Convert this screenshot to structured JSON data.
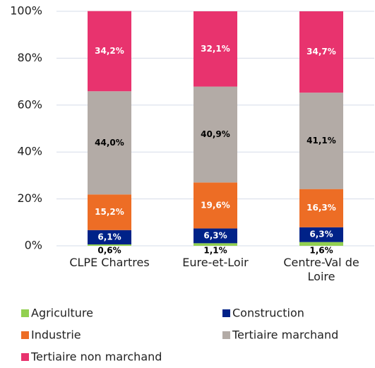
{
  "chart_data": {
    "type": "bar",
    "stacked": true,
    "categories": [
      "CLPE Chartres",
      "Eure-et-Loir",
      "Centre-Val de Loire"
    ],
    "series": [
      {
        "name": "Agriculture",
        "color": "#92d050",
        "values": [
          0.6,
          1.1,
          1.6
        ],
        "value_labels": [
          "0,6%",
          "1,1%",
          "1,6%"
        ]
      },
      {
        "name": "Construction",
        "color": "#002288",
        "values": [
          6.1,
          6.3,
          6.3
        ],
        "value_labels": [
          "6,1%",
          "6,3%",
          "6,3%"
        ]
      },
      {
        "name": "Industrie",
        "color": "#ed6d25",
        "values": [
          15.2,
          19.6,
          16.3
        ],
        "value_labels": [
          "15,2%",
          "19,6%",
          "16,3%"
        ]
      },
      {
        "name": "Tertiaire marchand",
        "color": "#b3aba6",
        "values": [
          44.0,
          40.9,
          41.1
        ],
        "value_labels": [
          "44,0%",
          "40,9%",
          "41,1%"
        ]
      },
      {
        "name": "Tertiaire non marchand",
        "color": "#e8336e",
        "values": [
          34.2,
          32.1,
          34.7
        ],
        "value_labels": [
          "34,2%",
          "32,1%",
          "34,7%"
        ]
      }
    ],
    "ylim": [
      0,
      100
    ],
    "yticks": [
      {
        "value": 0,
        "label": "0%"
      },
      {
        "value": 20,
        "label": "20%"
      },
      {
        "value": 40,
        "label": "40%"
      },
      {
        "value": 60,
        "label": "60%"
      },
      {
        "value": 80,
        "label": "80%"
      },
      {
        "value": 100,
        "label": "100%"
      }
    ],
    "grid": true
  }
}
